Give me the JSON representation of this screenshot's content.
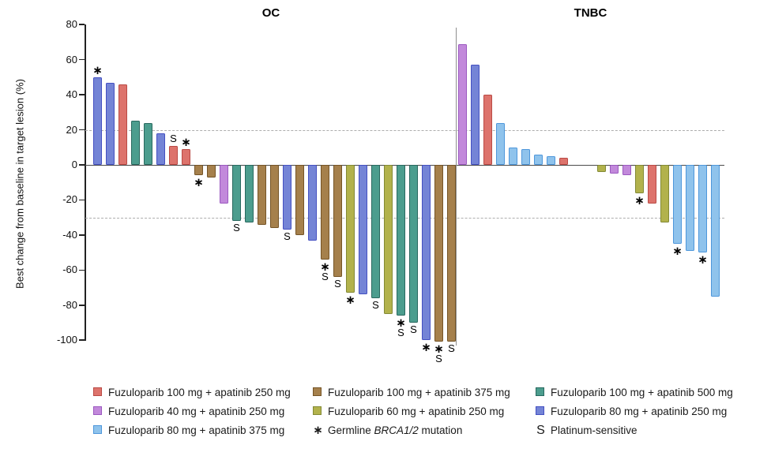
{
  "chart_data": {
    "type": "bar",
    "subtype": "waterfall",
    "ylabel": "Best change from baseline in target lesion (%)",
    "ylim": [
      -100,
      80
    ],
    "yticks": [
      80,
      60,
      40,
      20,
      0,
      -20,
      -40,
      -60,
      -80,
      -100
    ],
    "reference_lines_y": [
      20,
      -30
    ],
    "legend_position": "bottom",
    "arms": {
      "f100a250": {
        "label": "Fuzuloparib 100 mg + apatinib 250 mg",
        "fill": "#DD736C",
        "border": "#BA4A45"
      },
      "f40a250": {
        "label": "Fuzuloparib 40 mg + apatinib 250 mg",
        "fill": "#C289DB",
        "border": "#9B59C0"
      },
      "f80a375": {
        "label": "Fuzuloparib 80 mg + apatinib 375 mg",
        "fill": "#8FC3EC",
        "border": "#4E97DB"
      },
      "f100a375": {
        "label": "Fuzuloparib 100 mg + apatinib 375 mg",
        "fill": "#A5804C",
        "border": "#755426"
      },
      "f60a250": {
        "label": "Fuzuloparib 60 mg + apatinib 250 mg",
        "fill": "#B2B24C",
        "border": "#838A35"
      },
      "f100a500": {
        "label": "Fuzuloparib 100 mg + apatinib 500 mg",
        "fill": "#4C9D8E",
        "border": "#29695F"
      },
      "f80a250": {
        "label": "Fuzuloparib 80 mg + apatinib 250 mg",
        "fill": "#7484D6",
        "border": "#4450C2"
      }
    },
    "symbol_meanings": {
      "*": "Germline BRCA1/2 mutation",
      "S": "Platinum-sensitive"
    },
    "groups": [
      {
        "label": "OC",
        "bars": [
          {
            "value": 50,
            "arm": "f80a250",
            "marks": [
              "*"
            ]
          },
          {
            "value": 47,
            "arm": "f80a250",
            "marks": []
          },
          {
            "value": 46,
            "arm": "f100a250",
            "marks": []
          },
          {
            "value": 25,
            "arm": "f100a500",
            "marks": []
          },
          {
            "value": 24,
            "arm": "f100a500",
            "marks": []
          },
          {
            "value": 18,
            "arm": "f80a250",
            "marks": []
          },
          {
            "value": 11,
            "arm": "f100a250",
            "marks": [
              "S"
            ]
          },
          {
            "value": 9,
            "arm": "f100a250",
            "marks": [
              "*"
            ]
          },
          {
            "value": -6,
            "arm": "f100a375",
            "marks": [
              "*"
            ]
          },
          {
            "value": -7,
            "arm": "f100a375",
            "marks": []
          },
          {
            "value": -22,
            "arm": "f40a250",
            "marks": []
          },
          {
            "value": -32,
            "arm": "f100a500",
            "marks": [
              "S"
            ]
          },
          {
            "value": -33,
            "arm": "f100a500",
            "marks": []
          },
          {
            "value": -34,
            "arm": "f100a375",
            "marks": []
          },
          {
            "value": -36,
            "arm": "f100a375",
            "marks": []
          },
          {
            "value": -37,
            "arm": "f80a250",
            "marks": [
              "S"
            ]
          },
          {
            "value": -40,
            "arm": "f100a375",
            "marks": []
          },
          {
            "value": -43,
            "arm": "f80a250",
            "marks": []
          },
          {
            "value": -54,
            "arm": "f100a375",
            "marks": [
              "*",
              "S"
            ]
          },
          {
            "value": -64,
            "arm": "f100a375",
            "marks": [
              "S"
            ]
          },
          {
            "value": -73,
            "arm": "f60a250",
            "marks": [
              "*"
            ]
          },
          {
            "value": -74,
            "arm": "f80a250",
            "marks": []
          },
          {
            "value": -76,
            "arm": "f100a500",
            "marks": [
              "S"
            ]
          },
          {
            "value": -85,
            "arm": "f60a250",
            "marks": []
          },
          {
            "value": -86,
            "arm": "f100a500",
            "marks": [
              "*",
              "S"
            ]
          },
          {
            "value": -90,
            "arm": "f100a500",
            "marks": [
              "S"
            ]
          },
          {
            "value": -100,
            "arm": "f80a250",
            "marks": [
              "*"
            ]
          },
          {
            "value": -101,
            "arm": "f100a375",
            "marks": [
              "*",
              "S"
            ]
          },
          {
            "value": -101,
            "arm": "f100a375",
            "marks": [
              "S"
            ]
          }
        ]
      },
      {
        "label": "TNBC",
        "gap_after_bar": 9,
        "gap_slots": 2,
        "bars": [
          {
            "value": 69,
            "arm": "f40a250",
            "marks": []
          },
          {
            "value": 57,
            "arm": "f80a250",
            "marks": []
          },
          {
            "value": 40,
            "arm": "f100a250",
            "marks": []
          },
          {
            "value": 24,
            "arm": "f80a375",
            "marks": []
          },
          {
            "value": 10,
            "arm": "f80a375",
            "marks": []
          },
          {
            "value": 9,
            "arm": "f80a375",
            "marks": []
          },
          {
            "value": 6,
            "arm": "f80a375",
            "marks": []
          },
          {
            "value": 5,
            "arm": "f80a375",
            "marks": []
          },
          {
            "value": 4,
            "arm": "f100a250",
            "marks": []
          },
          {
            "value": -4,
            "arm": "f60a250",
            "marks": []
          },
          {
            "value": -5,
            "arm": "f40a250",
            "marks": []
          },
          {
            "value": -6,
            "arm": "f40a250",
            "marks": []
          },
          {
            "value": -16,
            "arm": "f60a250",
            "marks": [
              "*"
            ]
          },
          {
            "value": -22,
            "arm": "f100a250",
            "marks": []
          },
          {
            "value": -33,
            "arm": "f60a250",
            "marks": []
          },
          {
            "value": -45,
            "arm": "f80a375",
            "marks": [
              "*"
            ]
          },
          {
            "value": -49,
            "arm": "f80a375",
            "marks": []
          },
          {
            "value": -50,
            "arm": "f80a375",
            "marks": [
              "*"
            ]
          },
          {
            "value": -75,
            "arm": "f80a375",
            "marks": []
          }
        ]
      }
    ]
  },
  "legend": {
    "columns": [
      [
        {
          "arm": "f100a250"
        },
        {
          "arm": "f40a250"
        },
        {
          "arm": "f80a375"
        }
      ],
      [
        {
          "arm": "f100a375"
        },
        {
          "arm": "f60a250"
        },
        {
          "symbol": "*",
          "prefix": "Germline ",
          "italic": "BRCA1/2",
          "suffix": " mutation"
        }
      ],
      [
        {
          "arm": "f100a500"
        },
        {
          "arm": "f80a250"
        },
        {
          "symbol": "S",
          "prefix": "Platinum-sensitive",
          "italic": "",
          "suffix": ""
        }
      ]
    ]
  }
}
